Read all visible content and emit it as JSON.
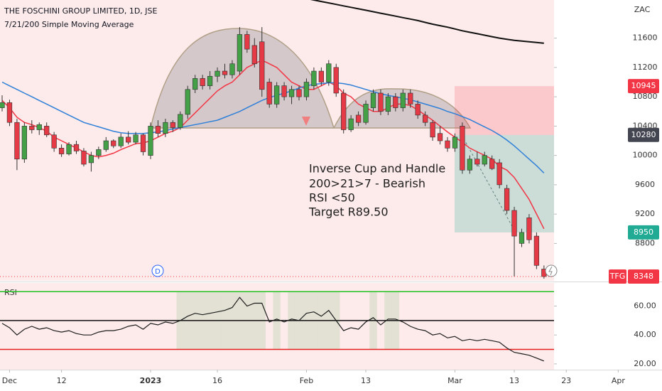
{
  "chart_data": {
    "type": "candlestick",
    "title": "THE FOSCHINI GROUP LIMITED, 1D, JSE",
    "subtitle": "7/21/200 Simple Moving Average",
    "y_unit": "ZAC",
    "ylim": [
      8290,
      12120
    ],
    "yticks": [
      8800,
      9200,
      9600,
      10000,
      10400,
      10800,
      11200,
      11600
    ],
    "xlim": [
      -0.287,
      88.9
    ],
    "xticks": [
      {
        "value": 1,
        "label": "Dec"
      },
      {
        "value": 8,
        "label": "12"
      },
      {
        "value": 20,
        "label": "2023"
      },
      {
        "value": 29,
        "label": "16"
      },
      {
        "value": 41,
        "label": "Feb"
      },
      {
        "value": 49,
        "label": "13"
      },
      {
        "value": 61,
        "label": "Mar"
      },
      {
        "value": 69,
        "label": "13"
      },
      {
        "value": 76,
        "label": "23"
      },
      {
        "value": 83,
        "label": "Apr"
      }
    ],
    "up_color": "#43a047",
    "down_color": "#e53945",
    "open": [
      10650,
      10720,
      10450,
      9950,
      10400,
      10350,
      10400,
      10280,
      10100,
      10020,
      10150,
      10060,
      9900,
      10000,
      10080,
      10200,
      10130,
      10250,
      10180,
      10280,
      10000,
      10400,
      10300,
      10450,
      10380,
      10560,
      10900,
      11050,
      10950,
      11080,
      11150,
      11100,
      11150,
      11650,
      11500,
      11550,
      11000,
      10700,
      10950,
      10800,
      10900,
      10800,
      10950,
      11150,
      11000,
      11200,
      10850,
      10350,
      10550,
      10450,
      10650,
      10850,
      10600,
      10800,
      10650,
      10850,
      10700,
      10550,
      10450,
      10300,
      10200,
      10100,
      10400,
      9800,
      9950,
      9880,
      9950,
      9900,
      9550,
      9250,
      8800,
      9150,
      8900,
      8450
    ],
    "high": [
      10820,
      10760,
      10500,
      10450,
      10480,
      10450,
      10450,
      10320,
      10150,
      10180,
      10200,
      10100,
      10050,
      10120,
      10250,
      10220,
      10300,
      10330,
      10320,
      10300,
      10450,
      10480,
      10500,
      10480,
      10600,
      10950,
      11100,
      11100,
      11150,
      11200,
      11250,
      11300,
      11750,
      11700,
      11600,
      11750,
      11050,
      11000,
      11000,
      10950,
      10950,
      11050,
      11200,
      11200,
      11300,
      11250,
      10900,
      10550,
      10600,
      10750,
      10900,
      10900,
      10850,
      10850,
      10900,
      10900,
      10750,
      10600,
      10480,
      10400,
      10250,
      10300,
      10450,
      10000,
      10050,
      10050,
      10000,
      9950,
      9600,
      9300,
      9000,
      9200,
      8950,
      8500
    ],
    "low": [
      10600,
      10400,
      9800,
      9900,
      10300,
      10280,
      10250,
      10050,
      9980,
      10000,
      10020,
      9850,
      9780,
      9950,
      10050,
      10100,
      10100,
      10150,
      10150,
      10000,
      9950,
      10250,
      10250,
      10320,
      10350,
      10500,
      10850,
      10900,
      10900,
      11000,
      11050,
      11050,
      11100,
      11400,
      11200,
      10800,
      10650,
      10650,
      10750,
      10700,
      10750,
      10750,
      10900,
      10950,
      10950,
      10800,
      10300,
      10320,
      10400,
      10420,
      10600,
      10550,
      10550,
      10600,
      10600,
      10650,
      10500,
      10400,
      10200,
      10150,
      10050,
      10050,
      9750,
      9750,
      9850,
      9850,
      9800,
      9550,
      9200,
      8350,
      8750,
      8800,
      8450,
      8320
    ],
    "close": [
      10720,
      10450,
      9950,
      10400,
      10350,
      10420,
      10280,
      10100,
      10020,
      10150,
      10060,
      9880,
      10000,
      10080,
      10200,
      10130,
      10250,
      10180,
      10280,
      10050,
      10400,
      10300,
      10450,
      10380,
      10560,
      10900,
      11050,
      10950,
      11080,
      11150,
      11100,
      11250,
      11650,
      11450,
      11250,
      10900,
      10700,
      10950,
      10800,
      10900,
      10800,
      11000,
      11150,
      11000,
      11250,
      10850,
      10350,
      10500,
      10450,
      10700,
      10850,
      10600,
      10800,
      10650,
      10850,
      10700,
      10550,
      10450,
      10250,
      10200,
      10100,
      10250,
      9800,
      9950,
      9880,
      10000,
      9820,
      9600,
      9250,
      8900,
      8950,
      8850,
      8500,
      8348
    ],
    "moving_averages": [
      {
        "color": "#f23645",
        "values": [
          10750,
          10650,
          10520,
          10450,
          10420,
          10380,
          10330,
          10250,
          10200,
          10150,
          10100,
          10050,
          10000,
          9980,
          10000,
          10030,
          10080,
          10120,
          10160,
          10170,
          10200,
          10250,
          10300,
          10330,
          10380,
          10480,
          10580,
          10680,
          10780,
          10880,
          10950,
          11000,
          11100,
          11200,
          11250,
          11300,
          11250,
          11200,
          11100,
          11000,
          10950,
          10900,
          10900,
          10950,
          11000,
          10950,
          10850,
          10800,
          10700,
          10650,
          10600,
          10600,
          10650,
          10700,
          10700,
          10680,
          10620,
          10550,
          10480,
          10400,
          10320,
          10250,
          10180,
          10100,
          10050,
          10000,
          9950,
          9850,
          9800,
          9700,
          9550,
          9400,
          9200,
          9000
        ]
      },
      {
        "color": "#2f80d8",
        "values": [
          11000,
          10950,
          10900,
          10850,
          10800,
          10750,
          10700,
          10650,
          10600,
          10550,
          10500,
          10450,
          10420,
          10390,
          10360,
          10330,
          10310,
          10300,
          10300,
          10300,
          10310,
          10320,
          10340,
          10360,
          10380,
          10400,
          10420,
          10440,
          10460,
          10480,
          10520,
          10560,
          10600,
          10650,
          10700,
          10750,
          10790,
          10820,
          10850,
          10880,
          10920,
          10950,
          10970,
          10980,
          10990,
          10990,
          10980,
          10960,
          10930,
          10900,
          10870,
          10840,
          10820,
          10800,
          10780,
          10760,
          10730,
          10700,
          10670,
          10640,
          10600,
          10570,
          10530,
          10490,
          10440,
          10390,
          10340,
          10280,
          10210,
          10130,
          10040,
          9950,
          9860,
          9760
        ]
      },
      {
        "color": "#111111",
        "values": [
          null,
          null,
          null,
          null,
          null,
          null,
          null,
          null,
          null,
          null,
          null,
          null,
          null,
          null,
          null,
          null,
          null,
          null,
          null,
          null,
          null,
          null,
          null,
          null,
          null,
          null,
          null,
          null,
          null,
          null,
          null,
          null,
          null,
          null,
          null,
          null,
          null,
          null,
          null,
          null,
          null,
          12140,
          12120,
          12100,
          12080,
          12060,
          12040,
          12020,
          12000,
          11980,
          11960,
          11940,
          11920,
          11900,
          11880,
          11860,
          11840,
          11815,
          11790,
          11770,
          11750,
          11725,
          11700,
          11680,
          11660,
          11640,
          11620,
          11600,
          11585,
          11570,
          11560,
          11550,
          11540,
          11530
        ]
      }
    ],
    "position": {
      "stop": 10945,
      "entry": 10280,
      "target": 8950,
      "stop_color": "#f23645",
      "entry_color": "#434651",
      "target_color": "#22ab94"
    },
    "last": {
      "symbol": "TFG",
      "value": 8348,
      "color": "#f23645"
    },
    "dividend_marker": "D",
    "annotation": [
      "Inverse Cup and Handle",
      "200>21>7 - Bearish",
      "RSI <50",
      "Target R89.50"
    ],
    "rsi": {
      "label": "RSI",
      "color": "#1e1e1e",
      "ylim": [
        16,
        76
      ],
      "yticks": [
        {
          "value": 20,
          "label": "20.00"
        },
        {
          "value": 40,
          "label": "40.00"
        },
        {
          "value": 60,
          "label": "60.00"
        }
      ],
      "levels": [
        {
          "value": 70,
          "color": "#22c122"
        },
        {
          "value": 50,
          "color": "#111111"
        },
        {
          "value": 30,
          "color": "#e52020"
        }
      ],
      "values": [
        48,
        45,
        40,
        44,
        46,
        44,
        45,
        43,
        42,
        43,
        41,
        40,
        40,
        42,
        43,
        43,
        44,
        46,
        47,
        44,
        48,
        47,
        49,
        48,
        50,
        53,
        55,
        54,
        55,
        56,
        57,
        59,
        66,
        60,
        62,
        62,
        49,
        51,
        49,
        51,
        50,
        55,
        56,
        53,
        57,
        50,
        43,
        45,
        44,
        49,
        52,
        47,
        51,
        51,
        49,
        46,
        44,
        43,
        40,
        41,
        38,
        39,
        36,
        37,
        36,
        37,
        36,
        35,
        31,
        28,
        27,
        26,
        24,
        22
      ]
    }
  }
}
